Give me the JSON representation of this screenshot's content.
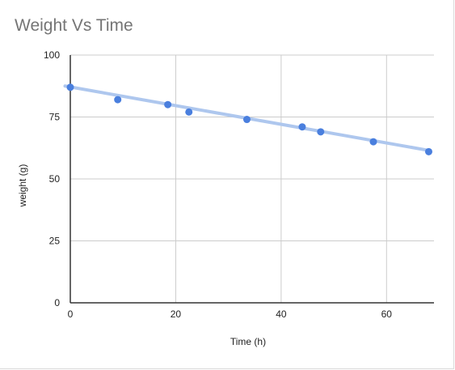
{
  "chart_data": {
    "type": "scatter",
    "title": "Weight Vs Time",
    "xlabel": "Time (h)",
    "ylabel": "weight (g)",
    "xlim": [
      0,
      69
    ],
    "ylim": [
      0,
      100
    ],
    "x_ticks": [
      0,
      20,
      40,
      60
    ],
    "y_ticks": [
      0,
      25,
      50,
      75,
      100
    ],
    "grid": true,
    "legend": "none",
    "series": [
      {
        "x": [
          0,
          9,
          18.5,
          22.5,
          33.5,
          44,
          47.5,
          57.5,
          68
        ],
        "y": [
          87,
          82,
          80,
          77,
          74,
          71,
          69,
          65,
          61
        ],
        "color": "#4a7fde"
      }
    ],
    "trendline": {
      "type": "linear",
      "color": "#aec7ee",
      "start": {
        "x": -1,
        "y": 87.5
      },
      "end": {
        "x": 68,
        "y": 61.5
      }
    }
  }
}
